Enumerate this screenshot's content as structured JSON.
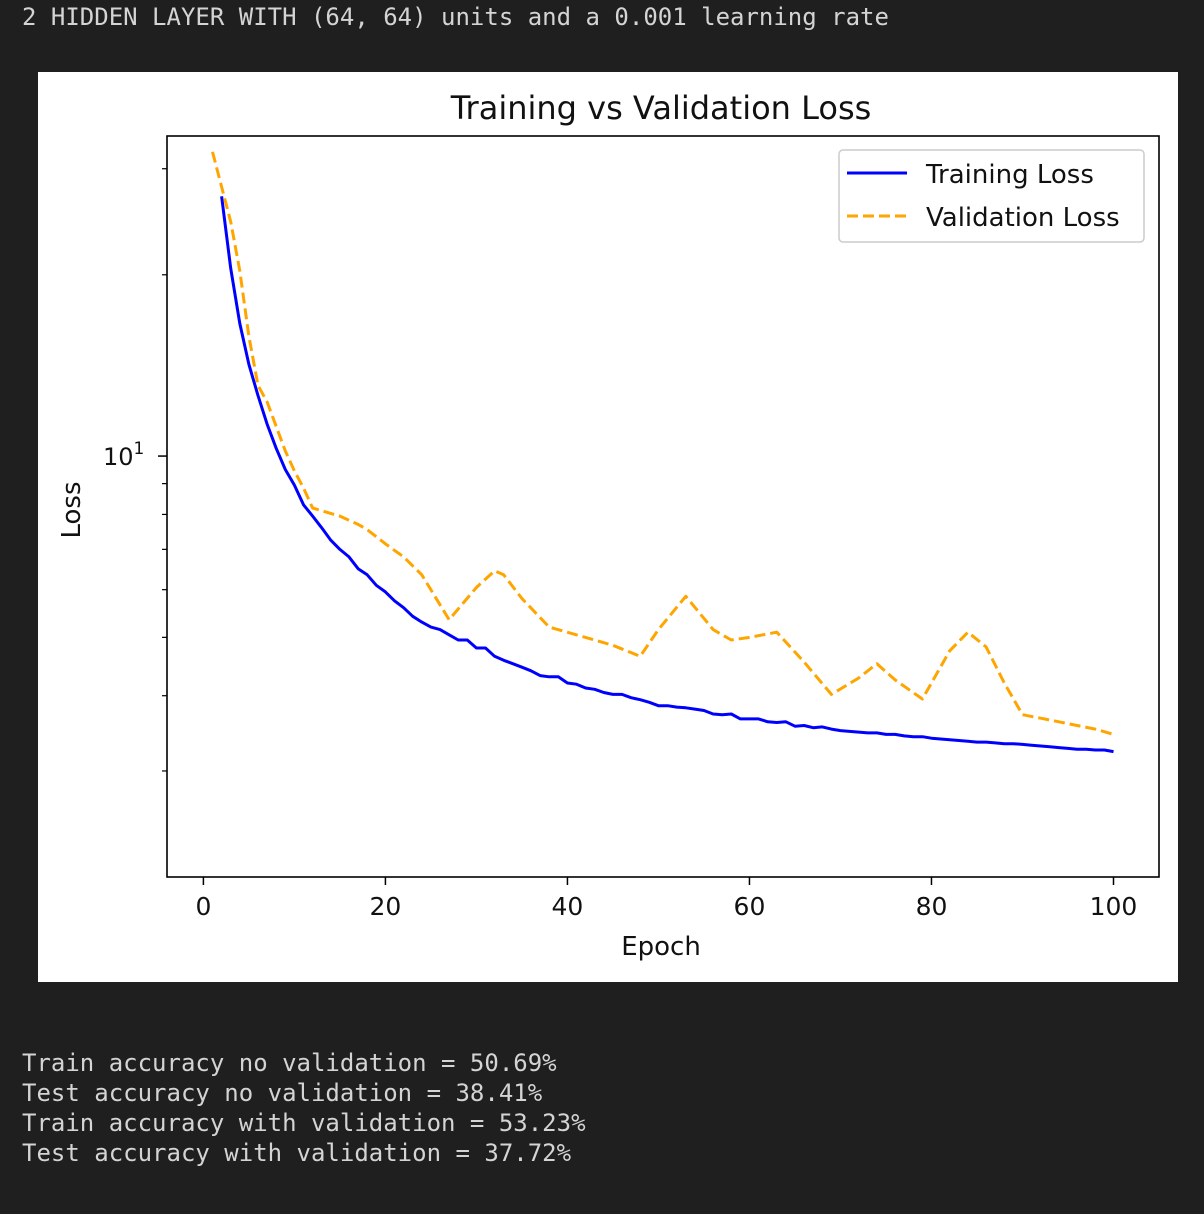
{
  "output": {
    "header_line": "2 HIDDEN LAYER WITH (64, 64) units and a 0.001 learning rate",
    "results": [
      "Train accuracy no validation = 50.69%",
      "Test accuracy no validation = 38.41%",
      "Train accuracy with validation = 53.23%",
      "Test accuracy with validation = 37.72%"
    ]
  },
  "chart_data": {
    "type": "line",
    "title": "Training vs Validation Loss",
    "xlabel": "Epoch",
    "ylabel": "Loss",
    "yscale": "log",
    "xlim": [
      -4,
      105
    ],
    "ylim": [
      2.0,
      34.0
    ],
    "x_ticks": [
      0,
      20,
      40,
      60,
      80,
      100
    ],
    "y_major_ticks": [
      {
        "value": 10,
        "base": "10",
        "exp": "1"
      }
    ],
    "y_minor_ticks": [
      3,
      4,
      5,
      6,
      7,
      8,
      9,
      20,
      30
    ],
    "grid": false,
    "legend_position": "top-right",
    "series": [
      {
        "name": "Training Loss",
        "color": "#0000ff",
        "style": "solid",
        "x": [
          2,
          3,
          4,
          5,
          6,
          7,
          8,
          9,
          10,
          11,
          12,
          13,
          14,
          15,
          16,
          17,
          18,
          19,
          20,
          21,
          22,
          23,
          24,
          25,
          26,
          27,
          28,
          29,
          30,
          31,
          32,
          33,
          34,
          35,
          36,
          37,
          38,
          39,
          40,
          41,
          42,
          43,
          44,
          45,
          46,
          47,
          48,
          49,
          50,
          51,
          52,
          53,
          54,
          55,
          56,
          57,
          58,
          59,
          60,
          61,
          62,
          63,
          64,
          65,
          66,
          67,
          68,
          69,
          70,
          71,
          72,
          73,
          74,
          75,
          76,
          77,
          78,
          79,
          80,
          81,
          82,
          83,
          84,
          85,
          86,
          87,
          88,
          89,
          90,
          91,
          92,
          93,
          94,
          95,
          96,
          97,
          98,
          99,
          100
        ],
        "y": [
          27.0,
          20.5,
          16.6,
          14.2,
          12.6,
          11.3,
          10.3,
          9.5,
          8.95,
          8.3,
          7.95,
          7.6,
          7.25,
          7.0,
          6.8,
          6.5,
          6.35,
          6.1,
          5.95,
          5.75,
          5.6,
          5.42,
          5.3,
          5.2,
          5.15,
          5.05,
          4.95,
          4.95,
          4.8,
          4.8,
          4.65,
          4.58,
          4.52,
          4.46,
          4.4,
          4.32,
          4.3,
          4.3,
          4.2,
          4.18,
          4.12,
          4.1,
          4.05,
          4.02,
          4.02,
          3.97,
          3.94,
          3.9,
          3.85,
          3.85,
          3.83,
          3.82,
          3.8,
          3.78,
          3.73,
          3.72,
          3.73,
          3.66,
          3.66,
          3.66,
          3.62,
          3.61,
          3.62,
          3.56,
          3.57,
          3.54,
          3.55,
          3.52,
          3.5,
          3.49,
          3.48,
          3.47,
          3.47,
          3.45,
          3.45,
          3.43,
          3.42,
          3.42,
          3.4,
          3.39,
          3.38,
          3.37,
          3.36,
          3.35,
          3.35,
          3.34,
          3.33,
          3.33,
          3.32,
          3.31,
          3.3,
          3.29,
          3.28,
          3.27,
          3.26,
          3.26,
          3.25,
          3.25,
          3.23
        ]
      },
      {
        "name": "Validation Loss",
        "color": "#ffa500",
        "style": "dashed",
        "x": [
          1,
          3,
          4,
          5,
          6,
          7,
          8,
          9,
          10,
          11,
          12,
          15,
          17,
          18,
          20,
          22,
          24,
          27,
          30,
          32,
          33,
          35,
          38,
          42,
          45,
          48,
          50,
          53,
          56,
          58,
          60,
          63,
          66,
          69,
          72,
          74,
          76,
          79,
          82,
          84,
          86,
          88,
          90,
          92,
          94,
          96,
          98,
          100
        ],
        "y": [
          32.0,
          24.5,
          20.3,
          15.8,
          13.1,
          12.3,
          11.2,
          10.2,
          9.45,
          8.85,
          8.2,
          7.95,
          7.7,
          7.55,
          7.15,
          6.8,
          6.35,
          5.35,
          6.05,
          6.45,
          6.35,
          5.8,
          5.2,
          5.0,
          4.85,
          4.65,
          5.15,
          5.85,
          5.15,
          4.95,
          5.0,
          5.1,
          4.55,
          4.02,
          4.28,
          4.52,
          4.25,
          3.95,
          4.75,
          5.1,
          4.82,
          4.2,
          3.72,
          3.67,
          3.62,
          3.57,
          3.52,
          3.45
        ]
      }
    ]
  }
}
